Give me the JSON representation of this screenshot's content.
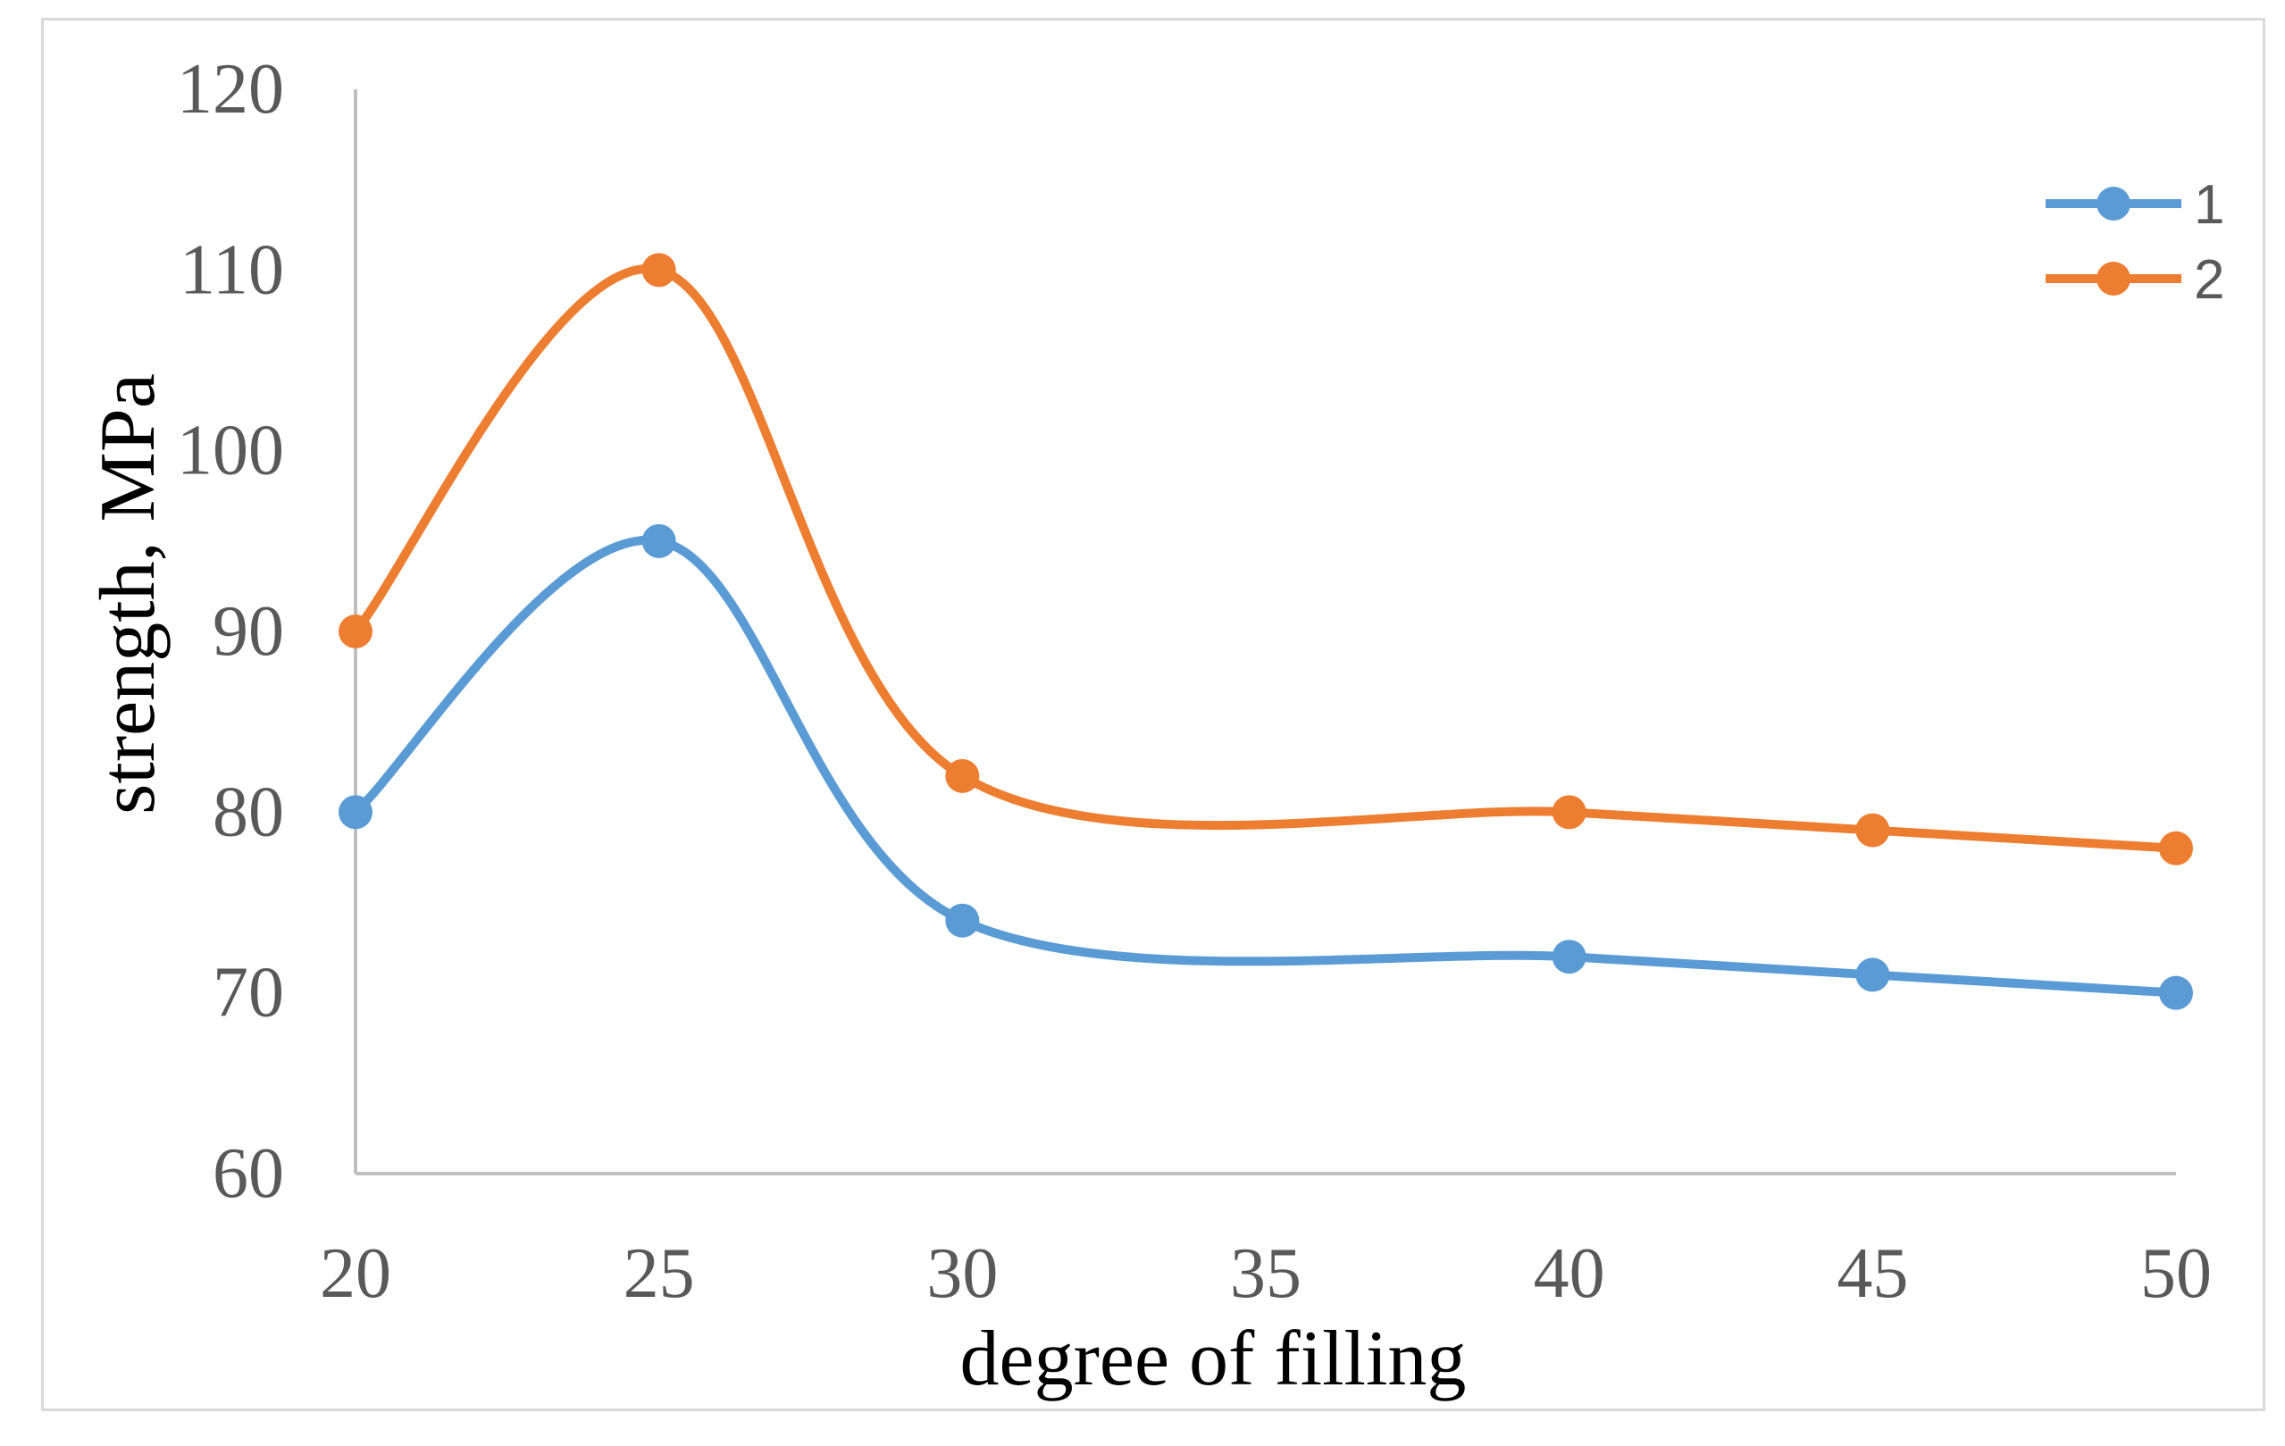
{
  "chart_data": {
    "type": "line",
    "smooth": true,
    "x": [
      20,
      25,
      30,
      40,
      45,
      50
    ],
    "x_ticks": [
      "20",
      "25",
      "30",
      "35",
      "40",
      "45",
      "50"
    ],
    "xlabel": "degree of filling",
    "ylabel": "strength, MPa",
    "xlim": [
      20,
      50
    ],
    "ylim": [
      60,
      120
    ],
    "y_ticks": [
      "60",
      "70",
      "80",
      "90",
      "100",
      "110",
      "120"
    ],
    "grid": false,
    "legend_position": "top-right",
    "series": [
      {
        "name": "1",
        "values": [
          80,
          95,
          74,
          72,
          71,
          70
        ],
        "color": "#5b9bd5"
      },
      {
        "name": "2",
        "values": [
          90,
          110,
          82,
          80,
          79,
          78
        ],
        "color": "#ed7d31"
      }
    ],
    "colors": {
      "axis": "#bfbfbf",
      "tick_text": "#595959",
      "frame_border": "#d9d9d9"
    }
  }
}
